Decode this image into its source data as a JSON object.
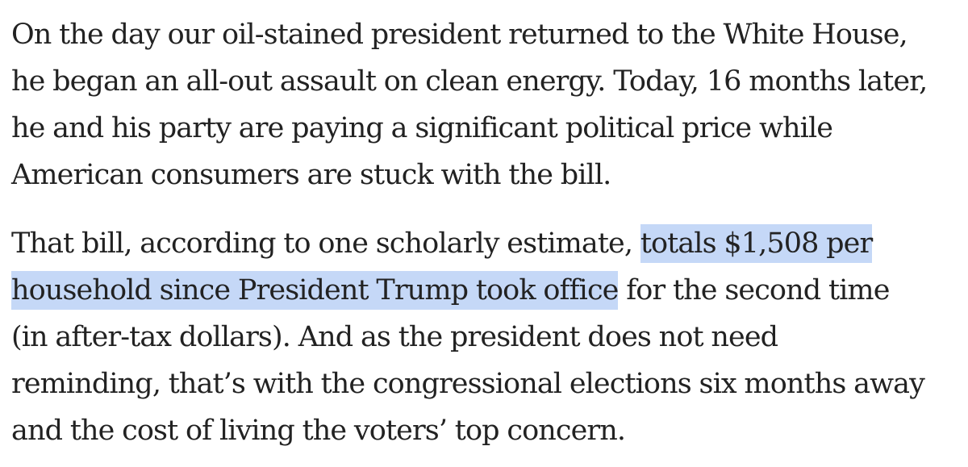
{
  "article": {
    "paragraph_1": {
      "lines": [
        "On the day our oil-stained president returned to the White House,",
        "he began an all-out assault on clean energy. Today, 16 months later,",
        "he and his party are paying a significant political price while",
        "American consumers are stuck with the bill."
      ]
    },
    "paragraph_2": {
      "line_1_plain": "That bill, according to one scholarly estimate, ",
      "line_1_highlight": "totals $1,508 per",
      "line_2_highlight": "household since President Trump took office",
      "line_2_plain": " for the second time",
      "line_3": "(in after-tax dollars). And as the president does not need",
      "line_4": "reminding, that’s with the congressional elections six months away",
      "line_5": "and the cost of living the voters’ top concern."
    },
    "highlight_color": "#c5d8f7",
    "text_color": "#222222"
  }
}
